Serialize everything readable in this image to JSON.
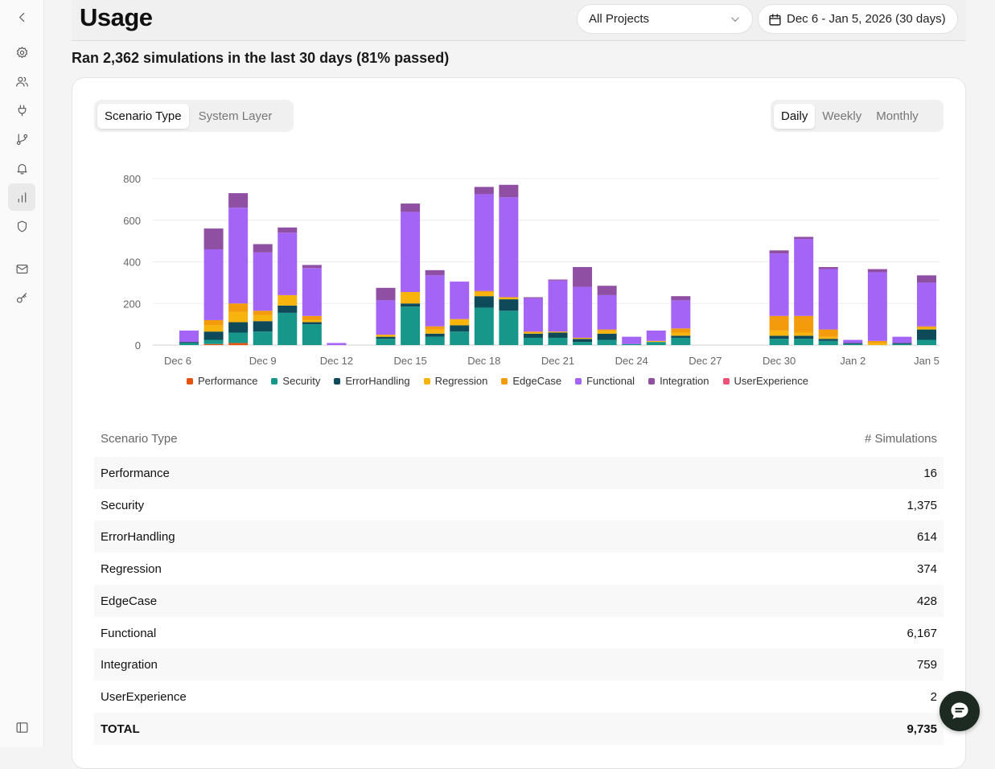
{
  "header": {
    "title": "Usage",
    "project_select": "All Projects",
    "date_range": "Dec 6 - Jan 5, 2026 (30 days)"
  },
  "summary": "Ran 2,362 simulations in the last 30 days (81% passed)",
  "tabs": {
    "group_by": [
      {
        "label": "Scenario Type",
        "active": true
      },
      {
        "label": "System Layer",
        "active": false
      }
    ],
    "period": [
      {
        "label": "Daily",
        "active": true
      },
      {
        "label": "Weekly",
        "active": false
      },
      {
        "label": "Monthly",
        "active": false
      }
    ]
  },
  "chart_data": {
    "type": "bar",
    "stacked": true,
    "ylim": [
      0,
      800
    ],
    "y_ticks": [
      0,
      200,
      400,
      600,
      800
    ],
    "x_tick_labels": [
      "Dec 6",
      "Dec 9",
      "Dec 12",
      "Dec 15",
      "Dec 18",
      "Dec 21",
      "Dec 24",
      "Dec 27",
      "Dec 30",
      "Jan 2",
      "Jan 5"
    ],
    "grid": true,
    "legend_position": "bottom",
    "categories": [
      "Dec 6",
      "Dec 7",
      "Dec 8",
      "Dec 9",
      "Dec 10",
      "Dec 11",
      "Dec 12",
      "Dec 13",
      "Dec 14",
      "Dec 15",
      "Dec 16",
      "Dec 17",
      "Dec 18",
      "Dec 19",
      "Dec 20",
      "Dec 21",
      "Dec 22",
      "Dec 23",
      "Dec 24",
      "Dec 25",
      "Dec 26",
      "Dec 27",
      "Dec 28",
      "Dec 29",
      "Dec 30",
      "Dec 31",
      "Jan 1",
      "Jan 2",
      "Jan 3",
      "Jan 4",
      "Jan 5"
    ],
    "series": [
      {
        "name": "Performance",
        "color": "#e8520f",
        "values": [
          0,
          5,
          10,
          0,
          0,
          0,
          0,
          0,
          0,
          0,
          0,
          0,
          0,
          0,
          0,
          0,
          0,
          0,
          0,
          0,
          0,
          0,
          0,
          0,
          0,
          0,
          0,
          0,
          0,
          0,
          0
        ]
      },
      {
        "name": "Security",
        "color": "#16978a",
        "values": [
          10,
          20,
          50,
          65,
          155,
          100,
          0,
          0,
          30,
          185,
          40,
          65,
          180,
          165,
          35,
          35,
          15,
          25,
          5,
          15,
          35,
          0,
          0,
          0,
          30,
          30,
          20,
          5,
          0,
          5,
          25
        ]
      },
      {
        "name": "ErrorHandling",
        "color": "#0f4a5a",
        "values": [
          5,
          40,
          50,
          50,
          35,
          10,
          0,
          0,
          10,
          15,
          15,
          30,
          55,
          55,
          20,
          25,
          15,
          30,
          0,
          0,
          10,
          0,
          0,
          0,
          15,
          15,
          10,
          5,
          0,
          5,
          50
        ]
      },
      {
        "name": "Regression",
        "color": "#f6b40d",
        "values": [
          0,
          30,
          50,
          30,
          50,
          10,
          0,
          0,
          10,
          55,
          20,
          30,
          20,
          10,
          5,
          5,
          5,
          15,
          0,
          5,
          15,
          0,
          0,
          0,
          25,
          15,
          10,
          0,
          10,
          0,
          10
        ]
      },
      {
        "name": "EdgeCase",
        "color": "#f39b0b",
        "values": [
          0,
          25,
          40,
          20,
          0,
          20,
          0,
          0,
          0,
          0,
          15,
          0,
          5,
          0,
          5,
          0,
          0,
          5,
          0,
          0,
          20,
          0,
          0,
          0,
          70,
          80,
          35,
          0,
          10,
          0,
          5
        ]
      },
      {
        "name": "Functional",
        "color": "#a464f5",
        "values": [
          55,
          340,
          460,
          280,
          300,
          230,
          10,
          0,
          165,
          385,
          245,
          180,
          465,
          480,
          160,
          245,
          245,
          165,
          35,
          50,
          135,
          0,
          0,
          0,
          300,
          370,
          290,
          15,
          330,
          30,
          210
        ]
      },
      {
        "name": "Integration",
        "color": "#8f4fa3",
        "values": [
          0,
          100,
          70,
          40,
          25,
          15,
          0,
          0,
          60,
          40,
          25,
          0,
          35,
          60,
          5,
          5,
          95,
          45,
          0,
          0,
          20,
          0,
          0,
          0,
          15,
          10,
          10,
          0,
          15,
          0,
          35
        ]
      },
      {
        "name": "UserExperience",
        "color": "#ef5079",
        "values": [
          0,
          0,
          0,
          0,
          0,
          0,
          0,
          0,
          0,
          0,
          0,
          0,
          0,
          0,
          0,
          0,
          0,
          0,
          0,
          0,
          0,
          0,
          0,
          0,
          0,
          0,
          0,
          0,
          0,
          0,
          0
        ]
      }
    ]
  },
  "table": {
    "col_type": "Scenario Type",
    "col_count": "# Simulations",
    "rows": [
      {
        "label": "Performance",
        "value": "16"
      },
      {
        "label": "Security",
        "value": "1,375"
      },
      {
        "label": "ErrorHandling",
        "value": "614"
      },
      {
        "label": "Regression",
        "value": "374"
      },
      {
        "label": "EdgeCase",
        "value": "428"
      },
      {
        "label": "Functional",
        "value": "6,167"
      },
      {
        "label": "Integration",
        "value": "759"
      },
      {
        "label": "UserExperience",
        "value": "2"
      }
    ],
    "total": {
      "label": "TOTAL",
      "value": "9,735"
    }
  },
  "sidebar": {
    "items": [
      {
        "icon": "chevron-left-icon"
      },
      {
        "icon": "gear-icon"
      },
      {
        "icon": "users-icon"
      },
      {
        "icon": "plug-icon"
      },
      {
        "icon": "git-branch-icon"
      },
      {
        "icon": "bell-icon"
      },
      {
        "icon": "bar-chart-icon",
        "active": true
      },
      {
        "icon": "shield-icon"
      },
      {
        "icon": "mail-icon"
      },
      {
        "icon": "key-icon"
      },
      {
        "icon": "sidebar-toggle-icon"
      }
    ]
  }
}
